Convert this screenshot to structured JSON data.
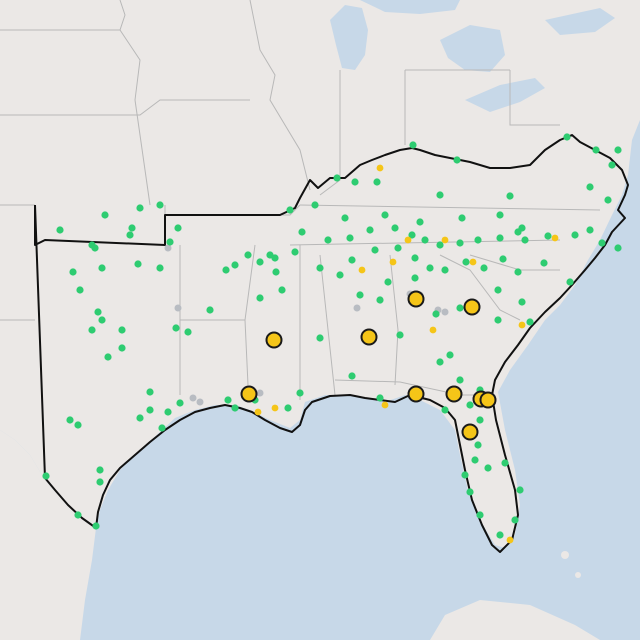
{
  "map": {
    "colors": {
      "land": "#ebe8e6",
      "water": "#c7d8e8",
      "state_border": "#b8b8b8",
      "region_outline": "#111111",
      "station_green": "#2ecc71",
      "station_yellow": "#f5c518",
      "station_gray": "#b8bcc2",
      "highlight_fill": "#f5c518",
      "highlight_stroke": "#1a1a1a"
    },
    "legend": [],
    "layers": {
      "region_outline": "southeast-region-boundary",
      "station_categories": [
        "green",
        "yellow",
        "gray",
        "highlight"
      ]
    }
  }
}
